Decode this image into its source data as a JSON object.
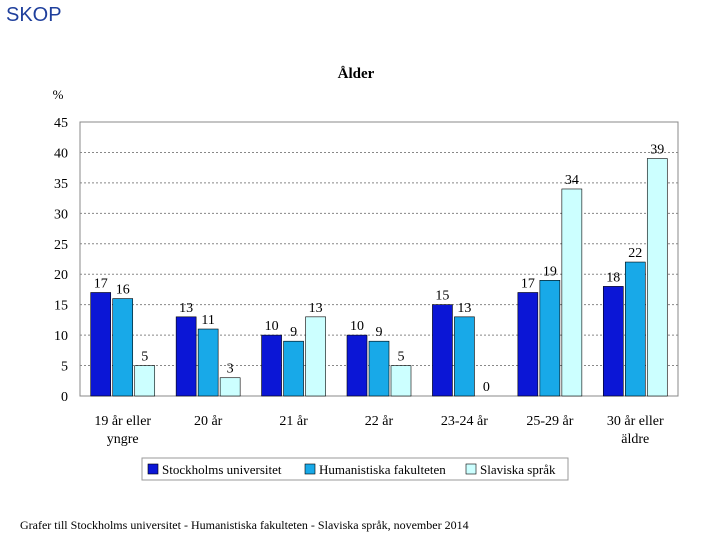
{
  "slide": {
    "brand": "SKOP",
    "footer": "Grafer till Stockholms universitet - Humanistiska fakulteten - Slaviska språk, november 2014"
  },
  "chart_data": {
    "type": "bar",
    "title": "Ålder",
    "ylabel": "%",
    "ylim": [
      0,
      45
    ],
    "yticks": [
      0,
      5,
      10,
      15,
      20,
      25,
      30,
      35,
      40,
      45
    ],
    "grid": true,
    "legend": "bottom",
    "categories": [
      [
        "19 år eller",
        "yngre"
      ],
      [
        "20 år"
      ],
      [
        "21 år"
      ],
      [
        "22 år"
      ],
      [
        "23-24 år"
      ],
      [
        "25-29 år"
      ],
      [
        "30 år eller",
        "äldre"
      ]
    ],
    "series": [
      {
        "name": "Stockholms universitet",
        "color": "#0b16d6",
        "values": [
          17,
          13,
          10,
          10,
          15,
          17,
          18
        ]
      },
      {
        "name": "Humanistiska fakulteten",
        "color": "#18a9e8",
        "values": [
          16,
          11,
          9,
          9,
          13,
          19,
          22
        ]
      },
      {
        "name": "Slaviska språk",
        "color": "#ccffff",
        "values": [
          5,
          3,
          13,
          5,
          0,
          34,
          39
        ]
      }
    ]
  }
}
